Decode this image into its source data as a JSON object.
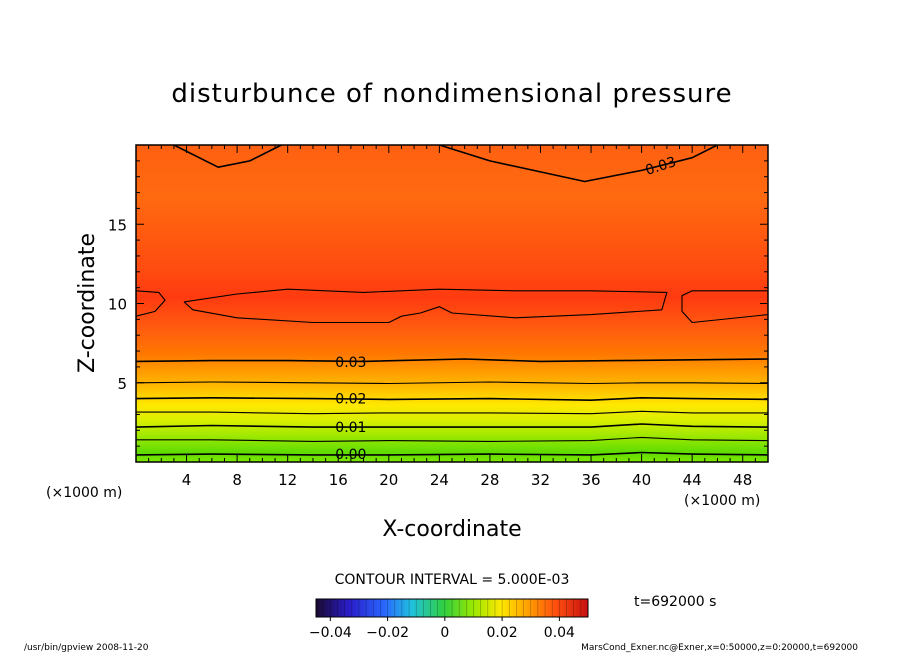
{
  "chart_data": {
    "type": "contour",
    "title": "disturbunce of nondimensional pressure",
    "xlabel": "X-coordinate",
    "ylabel": "Z-coordinate",
    "x_unit": "(×1000 m)",
    "z_unit": "(×1000 m)",
    "xlim": [
      0,
      50
    ],
    "ylim": [
      0,
      20
    ],
    "xticks": [
      4,
      8,
      12,
      16,
      20,
      24,
      28,
      32,
      36,
      40,
      44,
      48
    ],
    "yticks": [
      5,
      10,
      15
    ],
    "contour_interval_text": "CONTOUR INTERVAL = 5.000E-03",
    "contour_interval": 0.005,
    "time_text": "t=692000 s",
    "colorbar": {
      "min": -0.045,
      "max": 0.05,
      "ticks": [
        "−0.04",
        "−0.02",
        "0",
        "0.02",
        "0.04"
      ],
      "tick_values": [
        -0.04,
        -0.02,
        0,
        0.02,
        0.04
      ]
    },
    "contour_labels": [
      {
        "text": "0.00",
        "x": 17,
        "z": 0.5
      },
      {
        "text": "0.01",
        "x": 17,
        "z": 2.2
      },
      {
        "text": "0.02",
        "x": 17,
        "z": 4.0
      },
      {
        "text": "0.03",
        "x": 17,
        "z": 6.3
      },
      {
        "text": "0.03",
        "x": 41.5,
        "z": 18.7
      }
    ],
    "contour_lines": [
      {
        "level": 0.0,
        "points": [
          [
            0,
            0.45
          ],
          [
            6,
            0.5
          ],
          [
            14,
            0.45
          ],
          [
            20,
            0.45
          ],
          [
            28,
            0.5
          ],
          [
            36,
            0.45
          ],
          [
            40,
            0.6
          ],
          [
            44,
            0.5
          ],
          [
            50,
            0.45
          ]
        ]
      },
      {
        "level": 0.005,
        "points": [
          [
            0,
            1.4
          ],
          [
            6,
            1.4
          ],
          [
            14,
            1.3
          ],
          [
            20,
            1.35
          ],
          [
            28,
            1.3
          ],
          [
            36,
            1.35
          ],
          [
            40,
            1.55
          ],
          [
            44,
            1.4
          ],
          [
            50,
            1.35
          ]
        ]
      },
      {
        "level": 0.01,
        "points": [
          [
            0,
            2.2
          ],
          [
            6,
            2.3
          ],
          [
            14,
            2.2
          ],
          [
            20,
            2.2
          ],
          [
            28,
            2.2
          ],
          [
            36,
            2.2
          ],
          [
            40,
            2.4
          ],
          [
            44,
            2.25
          ],
          [
            50,
            2.2
          ]
        ]
      },
      {
        "level": 0.015,
        "points": [
          [
            0,
            3.15
          ],
          [
            6,
            3.15
          ],
          [
            14,
            3.05
          ],
          [
            20,
            3.1
          ],
          [
            28,
            3.1
          ],
          [
            36,
            3.05
          ],
          [
            40,
            3.2
          ],
          [
            44,
            3.1
          ],
          [
            50,
            3.1
          ]
        ]
      },
      {
        "level": 0.02,
        "points": [
          [
            0,
            4.0
          ],
          [
            6,
            4.05
          ],
          [
            14,
            4.0
          ],
          [
            20,
            3.95
          ],
          [
            28,
            4.0
          ],
          [
            36,
            3.9
          ],
          [
            40,
            4.05
          ],
          [
            44,
            4.0
          ],
          [
            50,
            3.95
          ]
        ]
      },
      {
        "level": 0.025,
        "points": [
          [
            0,
            5.0
          ],
          [
            6,
            5.05
          ],
          [
            14,
            5.0
          ],
          [
            20,
            4.95
          ],
          [
            28,
            5.05
          ],
          [
            36,
            4.95
          ],
          [
            40,
            5.0
          ],
          [
            44,
            5.0
          ],
          [
            50,
            4.95
          ]
        ]
      },
      {
        "level": 0.03,
        "points": [
          [
            0,
            6.35
          ],
          [
            6,
            6.4
          ],
          [
            12,
            6.4
          ],
          [
            18,
            6.35
          ],
          [
            26,
            6.5
          ],
          [
            32,
            6.35
          ],
          [
            38,
            6.4
          ],
          [
            44,
            6.45
          ],
          [
            50,
            6.5
          ]
        ]
      },
      {
        "level": 0.035,
        "points": [
          [
            0,
            9.2
          ],
          [
            1.5,
            9.5
          ],
          [
            2.3,
            10.2
          ],
          [
            1.8,
            10.7
          ],
          [
            0,
            10.8
          ]
        ]
      },
      {
        "level": 0.035,
        "points": [
          [
            3.8,
            10.1
          ],
          [
            8,
            10.6
          ],
          [
            12,
            10.9
          ],
          [
            18,
            10.7
          ],
          [
            24,
            10.9
          ],
          [
            30,
            10.8
          ],
          [
            36,
            10.8
          ],
          [
            42,
            10.7
          ],
          [
            41.6,
            9.6
          ],
          [
            36,
            9.3
          ],
          [
            30,
            9.1
          ],
          [
            25,
            9.4
          ],
          [
            24,
            9.8
          ],
          [
            22.5,
            9.4
          ],
          [
            21,
            9.2
          ],
          [
            20,
            8.8
          ],
          [
            14,
            8.8
          ],
          [
            8,
            9.1
          ],
          [
            4.5,
            9.6
          ],
          [
            3.8,
            10.1
          ]
        ]
      },
      {
        "level": 0.035,
        "points": [
          [
            50,
            10.8
          ],
          [
            44,
            10.8
          ],
          [
            43.2,
            10.5
          ],
          [
            43.2,
            9.5
          ],
          [
            44,
            8.8
          ],
          [
            50,
            9.3
          ]
        ]
      },
      {
        "level": 0.03,
        "points": [
          [
            3,
            20
          ],
          [
            6.5,
            18.6
          ],
          [
            9,
            19.0
          ],
          [
            11.5,
            20
          ]
        ]
      },
      {
        "level": 0.03,
        "points": [
          [
            24,
            20
          ],
          [
            28,
            19.0
          ],
          [
            32,
            18.3
          ],
          [
            35.5,
            17.7
          ],
          [
            40,
            18.4
          ],
          [
            44,
            19.2
          ],
          [
            46,
            20
          ]
        ]
      }
    ]
  },
  "footer": {
    "left": "/usr/bin/gpview   2008-11-20",
    "right": "MarsCond_Exner.nc@Exner,x=0:50000,z=0:20000,t=692000"
  }
}
